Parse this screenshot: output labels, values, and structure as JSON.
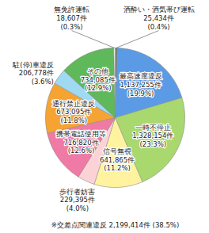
{
  "chart_data": {
    "type": "pie",
    "categories": [
      "酒酔い・酒気帯び運転",
      "最高速度違反",
      "一時不停止",
      "信号無視",
      "歩行者妨害",
      "携帯電話使用等",
      "通行禁止違反",
      "駐(停)車違反",
      "その他",
      "無免許運転"
    ],
    "values": [
      25434,
      1137255,
      1328154,
      641865,
      229395,
      716820,
      673095,
      206778,
      734085,
      18607
    ],
    "value_labels": [
      "25,434件 (0.4%)",
      "1,137,255件 (19.9%)",
      "1,328,154件 (23.3%)",
      "641,865件 (11.2%)",
      "229,395件 (4.0%)",
      "716,820件 (12.6%)",
      "673,095件 (11.8%)",
      "206,778件 (3.6%)",
      "734,085件 (12.9%)",
      "18,607件 (0.3%)"
    ],
    "colors": [
      "#5a6e4a",
      "#5b9be6",
      "#a8d86e",
      "#fff3a0",
      "#fbd3d6",
      "#f07aa6",
      "#f5a433",
      "#9fd9f2",
      "#5fb95a",
      "#ffffff"
    ],
    "data_labels": true,
    "annotations": [
      "※交差点関連違反 2,199,414件 (38.5%)"
    ]
  }
}
